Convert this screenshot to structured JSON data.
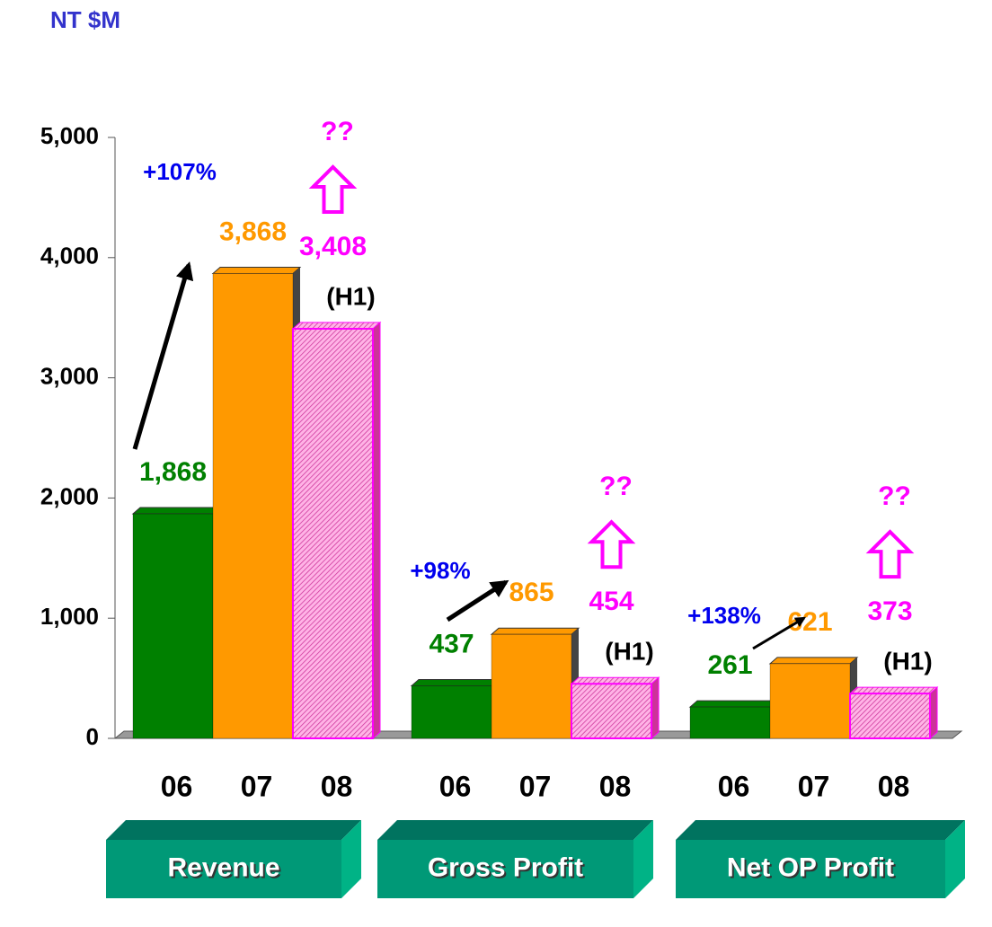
{
  "chart_data": {
    "type": "bar",
    "y_axis_label": "NT $M",
    "categories": [
      "Revenue",
      "Gross Profit",
      "Net OP Profit"
    ],
    "series": [
      {
        "name": "06",
        "color": "#008000",
        "label_color": "#008000",
        "values": [
          1868,
          437,
          261
        ],
        "value_labels": [
          "1,868",
          "437",
          "261"
        ]
      },
      {
        "name": "07",
        "color": "#ff9900",
        "label_color": "#ff9900",
        "values": [
          3868,
          865,
          621
        ],
        "value_labels": [
          "3,868",
          "865",
          "621"
        ]
      },
      {
        "name": "08",
        "color": "#ff99dd",
        "border": "#ff00ff",
        "hatched": true,
        "label_color": "#ff00ff",
        "values": [
          3408,
          454,
          373
        ],
        "value_labels": [
          "3,408",
          "454",
          "373"
        ],
        "note": "(H1)",
        "outlook": "??"
      }
    ],
    "growth_labels": [
      "+107%",
      "+98%",
      "+138%"
    ],
    "ylim": [
      0,
      5000
    ],
    "yticks": [
      0,
      {
        "value": 1000,
        "label": "1,000"
      },
      {
        "value": 2000,
        "label": "2,000"
      },
      {
        "value": 3000,
        "label": "3,000"
      },
      {
        "value": 4000,
        "label": "4,000"
      },
      {
        "value": 5000,
        "label": "5,000"
      }
    ]
  }
}
